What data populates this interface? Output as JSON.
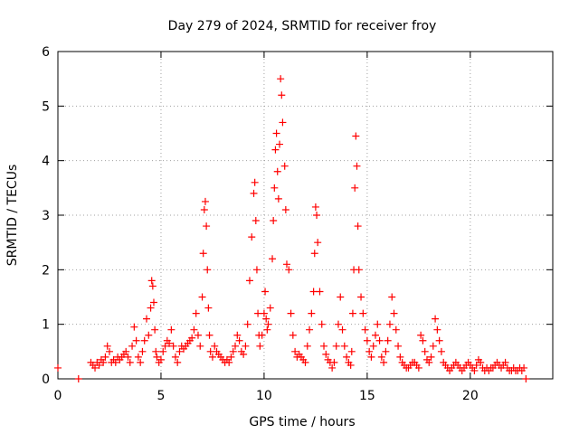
{
  "chart_data": {
    "type": "scatter",
    "title": "Day 279 of 2024, SRMTID for receiver froy",
    "xlabel": "GPS time / hours",
    "ylabel": "SRMTID / TECUs",
    "xlim": [
      0,
      24
    ],
    "ylim": [
      0,
      6
    ],
    "xticks": [
      0,
      5,
      10,
      15,
      20
    ],
    "yticks": [
      0,
      1,
      2,
      3,
      4,
      5,
      6
    ],
    "grid": true,
    "marker": "+",
    "color": "#ff0000",
    "series": [
      {
        "name": "SRMTID",
        "x": [
          0.0,
          1.0,
          1.6,
          1.7,
          1.8,
          1.9,
          2.0,
          2.1,
          2.2,
          2.3,
          2.4,
          2.5,
          2.6,
          2.7,
          2.8,
          2.9,
          3.0,
          3.1,
          3.2,
          3.3,
          3.4,
          3.5,
          3.6,
          3.7,
          3.8,
          3.9,
          4.0,
          4.1,
          4.2,
          4.3,
          4.4,
          4.5,
          4.55,
          4.6,
          4.65,
          4.7,
          4.75,
          4.8,
          4.9,
          5.0,
          5.1,
          5.2,
          5.3,
          5.4,
          5.5,
          5.6,
          5.7,
          5.8,
          5.9,
          6.0,
          6.1,
          6.2,
          6.3,
          6.4,
          6.5,
          6.6,
          6.7,
          6.8,
          6.9,
          7.0,
          7.05,
          7.1,
          7.15,
          7.2,
          7.25,
          7.3,
          7.35,
          7.4,
          7.5,
          7.6,
          7.7,
          7.8,
          7.9,
          8.0,
          8.1,
          8.2,
          8.3,
          8.4,
          8.5,
          8.6,
          8.7,
          8.8,
          8.9,
          9.0,
          9.1,
          9.2,
          9.3,
          9.4,
          9.5,
          9.55,
          9.6,
          9.65,
          9.7,
          9.75,
          9.8,
          9.9,
          10.0,
          10.05,
          10.1,
          10.15,
          10.2,
          10.3,
          10.4,
          10.45,
          10.5,
          10.55,
          10.6,
          10.65,
          10.7,
          10.75,
          10.8,
          10.85,
          10.9,
          11.0,
          11.05,
          11.1,
          11.2,
          11.3,
          11.4,
          11.5,
          11.6,
          11.7,
          11.8,
          11.9,
          12.0,
          12.1,
          12.2,
          12.3,
          12.4,
          12.45,
          12.5,
          12.55,
          12.6,
          12.7,
          12.8,
          12.9,
          13.0,
          13.1,
          13.2,
          13.3,
          13.4,
          13.5,
          13.6,
          13.7,
          13.8,
          13.9,
          14.0,
          14.1,
          14.2,
          14.25,
          14.3,
          14.35,
          14.4,
          14.45,
          14.5,
          14.55,
          14.6,
          14.7,
          14.8,
          14.9,
          15.0,
          15.1,
          15.2,
          15.3,
          15.4,
          15.5,
          15.6,
          15.7,
          15.8,
          15.9,
          16.0,
          16.1,
          16.2,
          16.3,
          16.4,
          16.5,
          16.6,
          16.7,
          16.8,
          16.9,
          17.0,
          17.1,
          17.2,
          17.3,
          17.4,
          17.5,
          17.6,
          17.7,
          17.8,
          17.9,
          18.0,
          18.1,
          18.2,
          18.3,
          18.4,
          18.5,
          18.6,
          18.7,
          18.8,
          18.9,
          19.0,
          19.1,
          19.2,
          19.3,
          19.4,
          19.5,
          19.6,
          19.7,
          19.8,
          19.9,
          20.0,
          20.1,
          20.2,
          20.3,
          20.4,
          20.5,
          20.6,
          20.7,
          20.8,
          20.9,
          21.0,
          21.1,
          21.2,
          21.3,
          21.4,
          21.5,
          21.6,
          21.7,
          21.8,
          21.9,
          22.0,
          22.1,
          22.2,
          22.3,
          22.4,
          22.5,
          22.6,
          22.7
        ],
        "y": [
          0.2,
          0.0,
          0.3,
          0.25,
          0.2,
          0.3,
          0.25,
          0.35,
          0.3,
          0.4,
          0.6,
          0.5,
          0.3,
          0.35,
          0.3,
          0.4,
          0.35,
          0.4,
          0.45,
          0.5,
          0.4,
          0.3,
          0.6,
          0.95,
          0.7,
          0.4,
          0.3,
          0.5,
          0.7,
          1.1,
          0.8,
          1.3,
          1.8,
          1.7,
          1.4,
          0.9,
          0.5,
          0.4,
          0.3,
          0.35,
          0.5,
          0.6,
          0.7,
          0.65,
          0.9,
          0.6,
          0.4,
          0.3,
          0.5,
          0.6,
          0.55,
          0.6,
          0.65,
          0.7,
          0.75,
          0.9,
          1.2,
          0.8,
          0.6,
          1.5,
          2.3,
          3.1,
          3.25,
          2.8,
          2.0,
          1.3,
          0.8,
          0.5,
          0.4,
          0.6,
          0.5,
          0.45,
          0.4,
          0.35,
          0.3,
          0.35,
          0.3,
          0.4,
          0.5,
          0.6,
          0.8,
          0.7,
          0.5,
          0.45,
          0.6,
          1.0,
          1.8,
          2.6,
          3.4,
          3.6,
          2.9,
          2.0,
          1.2,
          0.8,
          0.6,
          0.8,
          1.2,
          1.6,
          1.1,
          0.9,
          1.0,
          1.3,
          2.2,
          2.9,
          3.5,
          4.2,
          4.5,
          3.8,
          3.3,
          4.3,
          5.5,
          5.2,
          4.7,
          3.9,
          3.1,
          2.1,
          2.0,
          1.2,
          0.8,
          0.5,
          0.4,
          0.45,
          0.4,
          0.35,
          0.3,
          0.6,
          0.9,
          1.2,
          1.6,
          2.3,
          3.15,
          3.0,
          2.5,
          1.6,
          1.0,
          0.6,
          0.45,
          0.35,
          0.3,
          0.2,
          0.3,
          0.6,
          1.0,
          1.5,
          0.9,
          0.6,
          0.4,
          0.3,
          0.25,
          0.5,
          1.2,
          2.0,
          3.5,
          4.45,
          3.9,
          2.8,
          2.0,
          1.5,
          1.2,
          0.9,
          0.7,
          0.5,
          0.4,
          0.6,
          0.8,
          1.0,
          0.7,
          0.4,
          0.3,
          0.5,
          0.7,
          1.0,
          1.5,
          1.2,
          0.9,
          0.6,
          0.4,
          0.3,
          0.25,
          0.2,
          0.2,
          0.25,
          0.3,
          0.3,
          0.25,
          0.2,
          0.8,
          0.7,
          0.5,
          0.35,
          0.3,
          0.4,
          0.6,
          1.1,
          0.9,
          0.7,
          0.5,
          0.3,
          0.25,
          0.2,
          0.15,
          0.2,
          0.25,
          0.3,
          0.25,
          0.2,
          0.15,
          0.2,
          0.25,
          0.3,
          0.25,
          0.2,
          0.15,
          0.25,
          0.35,
          0.3,
          0.2,
          0.15,
          0.2,
          0.15,
          0.2,
          0.2,
          0.25,
          0.3,
          0.25,
          0.2,
          0.25,
          0.3,
          0.2,
          0.15,
          0.15,
          0.2,
          0.15,
          0.15,
          0.2,
          0.15,
          0.2,
          0.0
        ]
      }
    ]
  }
}
